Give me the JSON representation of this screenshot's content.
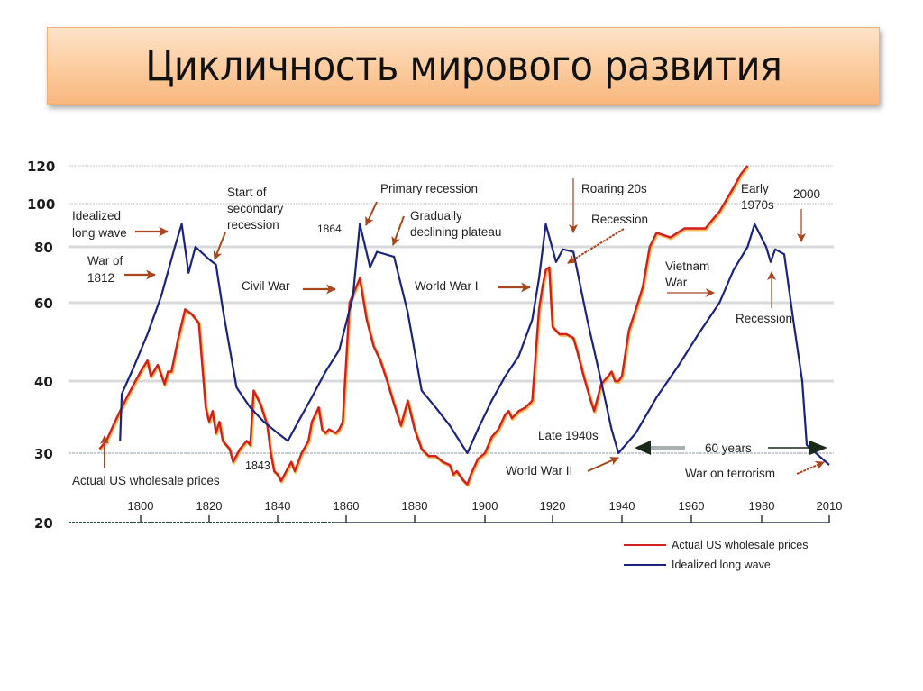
{
  "slide": {
    "title": "Цикличность мирового развития"
  },
  "chart_data": {
    "type": "line",
    "title": "Цикличность мирового развития",
    "xlabel": "",
    "ylabel": "",
    "x_range": [
      1785,
      2010
    ],
    "y_range": [
      20,
      120
    ],
    "y_scale": "log",
    "grid": true,
    "y_ticks": [
      20,
      30,
      40,
      60,
      80,
      100,
      120
    ],
    "x_ticks": [
      "1800",
      "1820",
      "1840",
      "1860",
      "1880",
      "1900",
      "1920",
      "1940",
      "1960",
      "1980",
      "2010"
    ],
    "legend_position": "bottom-right",
    "series": [
      {
        "name": "Actual US wholesale prices",
        "color": "#d21f1f",
        "points": [
          [
            1788,
            30.5
          ],
          [
            1790,
            31.5
          ],
          [
            1792,
            33.5
          ],
          [
            1794,
            35.5
          ],
          [
            1796,
            37.5
          ],
          [
            1798,
            39.5
          ],
          [
            1800,
            42
          ],
          [
            1802,
            44.5
          ],
          [
            1803,
            41
          ],
          [
            1805,
            43.5
          ],
          [
            1807,
            39.5
          ],
          [
            1808,
            42
          ],
          [
            1809,
            42
          ],
          [
            1811,
            50
          ],
          [
            1813,
            58
          ],
          [
            1815,
            56.5
          ],
          [
            1817,
            54
          ],
          [
            1819,
            36
          ],
          [
            1820,
            34
          ],
          [
            1821,
            35.5
          ],
          [
            1822,
            32.5
          ],
          [
            1823,
            34
          ],
          [
            1824,
            31.5
          ],
          [
            1826,
            30.5
          ],
          [
            1827,
            28.5
          ],
          [
            1829,
            30.5
          ],
          [
            1831,
            31.5
          ],
          [
            1832,
            31
          ],
          [
            1833,
            38.5
          ],
          [
            1835,
            36.5
          ],
          [
            1837,
            33.5
          ],
          [
            1838,
            30
          ],
          [
            1839,
            27
          ],
          [
            1840,
            26.5
          ],
          [
            1841,
            25.5
          ],
          [
            1843,
            27.5
          ],
          [
            1844,
            28.5
          ],
          [
            1845,
            27
          ],
          [
            1847,
            30
          ],
          [
            1849,
            31.5
          ],
          [
            1850,
            34
          ],
          [
            1852,
            36
          ],
          [
            1853,
            33
          ],
          [
            1854,
            32.5
          ],
          [
            1855,
            33
          ],
          [
            1857,
            32.5
          ],
          [
            1858,
            33
          ],
          [
            1859,
            34
          ],
          [
            1861,
            60
          ],
          [
            1864,
            68
          ],
          [
            1866,
            55
          ],
          [
            1868,
            48
          ],
          [
            1870,
            44.5
          ],
          [
            1872,
            40
          ],
          [
            1874,
            36.5
          ],
          [
            1876,
            33.5
          ],
          [
            1878,
            37
          ],
          [
            1880,
            33
          ],
          [
            1882,
            30.5
          ],
          [
            1884,
            29.5
          ],
          [
            1886,
            29.5
          ],
          [
            1888,
            28.5
          ],
          [
            1890,
            28
          ],
          [
            1891,
            26.5
          ],
          [
            1892,
            27
          ],
          [
            1894,
            25.5
          ],
          [
            1895,
            25
          ],
          [
            1896,
            26.5
          ],
          [
            1898,
            29
          ],
          [
            1900,
            30
          ],
          [
            1902,
            32
          ],
          [
            1904,
            33
          ],
          [
            1906,
            35
          ],
          [
            1907,
            35.5
          ],
          [
            1908,
            34.5
          ],
          [
            1910,
            35.5
          ],
          [
            1912,
            36
          ],
          [
            1914,
            37
          ],
          [
            1915,
            46
          ],
          [
            1916,
            58
          ],
          [
            1917,
            65
          ],
          [
            1918,
            71
          ],
          [
            1919,
            72
          ],
          [
            1920,
            53
          ],
          [
            1922,
            51
          ],
          [
            1924,
            51
          ],
          [
            1926,
            50
          ],
          [
            1927,
            47
          ],
          [
            1929,
            41
          ],
          [
            1931,
            37
          ],
          [
            1932,
            35.5
          ],
          [
            1934,
            39.5
          ],
          [
            1936,
            41
          ],
          [
            1937,
            42
          ],
          [
            1938,
            40
          ],
          [
            1939,
            40
          ],
          [
            1940,
            41
          ],
          [
            1942,
            52
          ],
          [
            1944,
            58
          ],
          [
            1946,
            65
          ],
          [
            1948,
            80
          ],
          [
            1950,
            86
          ],
          [
            1952,
            85
          ],
          [
            1954,
            84
          ],
          [
            1956,
            86
          ],
          [
            1958,
            88
          ],
          [
            1960,
            88
          ],
          [
            1962,
            88
          ],
          [
            1964,
            88
          ],
          [
            1966,
            92
          ],
          [
            1968,
            96
          ],
          [
            1970,
            102
          ],
          [
            1972,
            108
          ],
          [
            1974,
            115
          ],
          [
            1976,
            120
          ]
        ]
      },
      {
        "name": "Idealized long wave",
        "color": "#1a237e",
        "points": [
          [
            1794,
            31.5
          ],
          [
            1794.5,
            38
          ],
          [
            1798,
            43
          ],
          [
            1802,
            51
          ],
          [
            1806,
            62
          ],
          [
            1810,
            80
          ],
          [
            1812,
            90
          ],
          [
            1814,
            70
          ],
          [
            1816,
            80
          ],
          [
            1820,
            75
          ],
          [
            1822,
            73
          ],
          [
            1824,
            58
          ],
          [
            1828,
            39
          ],
          [
            1832,
            36
          ],
          [
            1836,
            34
          ],
          [
            1840,
            32.5
          ],
          [
            1843,
            31.5
          ],
          [
            1846,
            34
          ],
          [
            1850,
            37.5
          ],
          [
            1854,
            42
          ],
          [
            1858,
            47
          ],
          [
            1862,
            62
          ],
          [
            1864,
            90
          ],
          [
            1867,
            72
          ],
          [
            1869,
            78
          ],
          [
            1874,
            76
          ],
          [
            1878,
            57
          ],
          [
            1882,
            38.5
          ],
          [
            1886,
            36
          ],
          [
            1890,
            33.5
          ],
          [
            1895,
            30
          ],
          [
            1898,
            33
          ],
          [
            1902,
            37
          ],
          [
            1906,
            41
          ],
          [
            1910,
            45.5
          ],
          [
            1914,
            55
          ],
          [
            1916,
            68
          ],
          [
            1918,
            90
          ],
          [
            1921,
            74
          ],
          [
            1923,
            79
          ],
          [
            1926,
            78
          ],
          [
            1930,
            55
          ],
          [
            1934,
            40
          ],
          [
            1937,
            33
          ],
          [
            1939,
            30
          ],
          [
            1944,
            32.5
          ],
          [
            1950,
            37.5
          ],
          [
            1956,
            43
          ],
          [
            1962,
            51
          ],
          [
            1968,
            60
          ],
          [
            1972,
            71
          ],
          [
            1976,
            80
          ],
          [
            1978,
            90
          ],
          [
            1982,
            80
          ],
          [
            1984,
            74
          ],
          [
            1986,
            79
          ],
          [
            1990,
            77
          ],
          [
            1994,
            55
          ],
          [
            1998,
            40
          ],
          [
            2000,
            31
          ],
          [
            2010,
            28
          ]
        ]
      }
    ],
    "annotations": [
      {
        "text": "Idealized long wave",
        "year": 1812
      },
      {
        "text": "War of 1812",
        "year": 1812
      },
      {
        "text": "Start of secondary recession",
        "year": 1822
      },
      {
        "text": "Civil War",
        "year": 1861
      },
      {
        "text": "1864",
        "year": 1864
      },
      {
        "text": "Primary recession",
        "year": 1864
      },
      {
        "text": "Gradually declining plateau",
        "year": 1874
      },
      {
        "text": "World War I",
        "year": 1916
      },
      {
        "text": "Roaring 20s",
        "year": 1923
      },
      {
        "text": "Recession",
        "year": 1921
      },
      {
        "text": "Late 1940s",
        "year": 1939
      },
      {
        "text": "World War II",
        "year": 1939
      },
      {
        "text": "1843",
        "year": 1843
      },
      {
        "text": "Actual US wholesale prices",
        "year": 1792
      },
      {
        "text": "Vietnam War",
        "year": 1965
      },
      {
        "text": "Early 1970s",
        "year": 1978
      },
      {
        "text": "Recession",
        "year": 1984
      },
      {
        "text": "2000",
        "year": 1990
      },
      {
        "text": "60 years",
        "range": [
          1939,
          2000
        ]
      },
      {
        "text": "War on terrorism",
        "year": 2000
      }
    ]
  },
  "labels": {
    "y": [
      "120",
      "100",
      "80",
      "60",
      "40",
      "30",
      "20"
    ],
    "x": [
      "1800",
      "1820",
      "1840",
      "1860",
      "1880",
      "1900",
      "1920",
      "1940",
      "1960",
      "1980",
      "2010"
    ],
    "ann_idealized_1": "Idealized",
    "ann_idealized_2": "long wave",
    "ann_war1812_1": "War of",
    "ann_war1812_2": "1812",
    "ann_secondary_1": "Start of",
    "ann_secondary_2": "secondary",
    "ann_secondary_3": "recession",
    "ann_civil_war": "Civil War",
    "ann_1864": "1864",
    "ann_primary": "Primary recession",
    "ann_plateau_1": "Gradually",
    "ann_plateau_2": "declining plateau",
    "ann_ww1": "World War I",
    "ann_roaring": "Roaring 20s",
    "ann_recession1": "Recession",
    "ann_late40s": "Late 1940s",
    "ann_ww2": "World War II",
    "ann_1843": "1843",
    "ann_actual": "Actual US wholesale prices",
    "ann_vietnam_1": "Vietnam",
    "ann_vietnam_2": "War",
    "ann_early70_1": "Early",
    "ann_early70_2": "1970s",
    "ann_recession2": "Recession",
    "ann_2000": "2000",
    "ann_60years": "60 years",
    "ann_terrorism": "War on terrorism"
  },
  "legend": {
    "items": [
      {
        "label": "Actual US wholesale prices",
        "color": "#d21f1f"
      },
      {
        "label": "Idealized long wave",
        "color": "#1a237e"
      }
    ]
  }
}
